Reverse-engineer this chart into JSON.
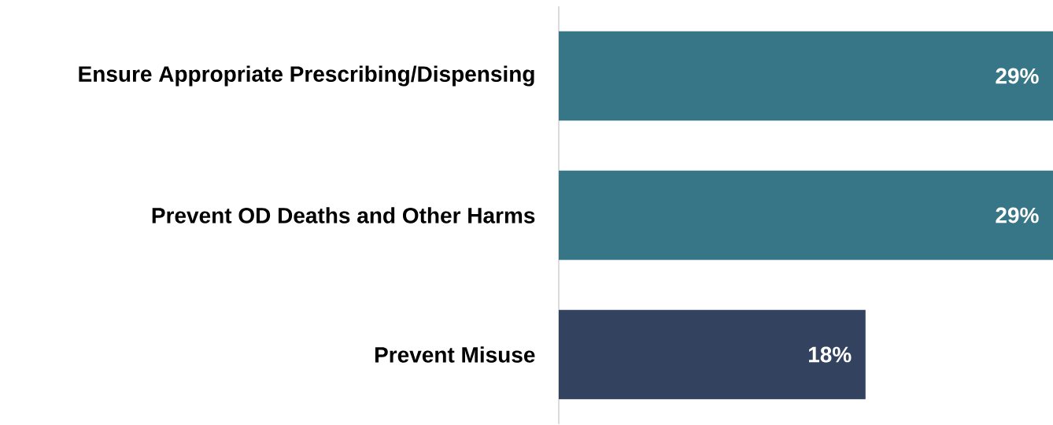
{
  "chart_data": {
    "type": "bar",
    "orientation": "horizontal",
    "categories": [
      "Ensure Appropriate Prescribing/Dispensing",
      "Prevent OD Deaths and Other Harms",
      "Prevent Misuse"
    ],
    "values": [
      29,
      29,
      18
    ],
    "value_labels": [
      "29%",
      "29%",
      "18%"
    ],
    "colors": [
      "#367687",
      "#367687",
      "#33425f"
    ],
    "xlim": [
      0,
      29
    ]
  }
}
